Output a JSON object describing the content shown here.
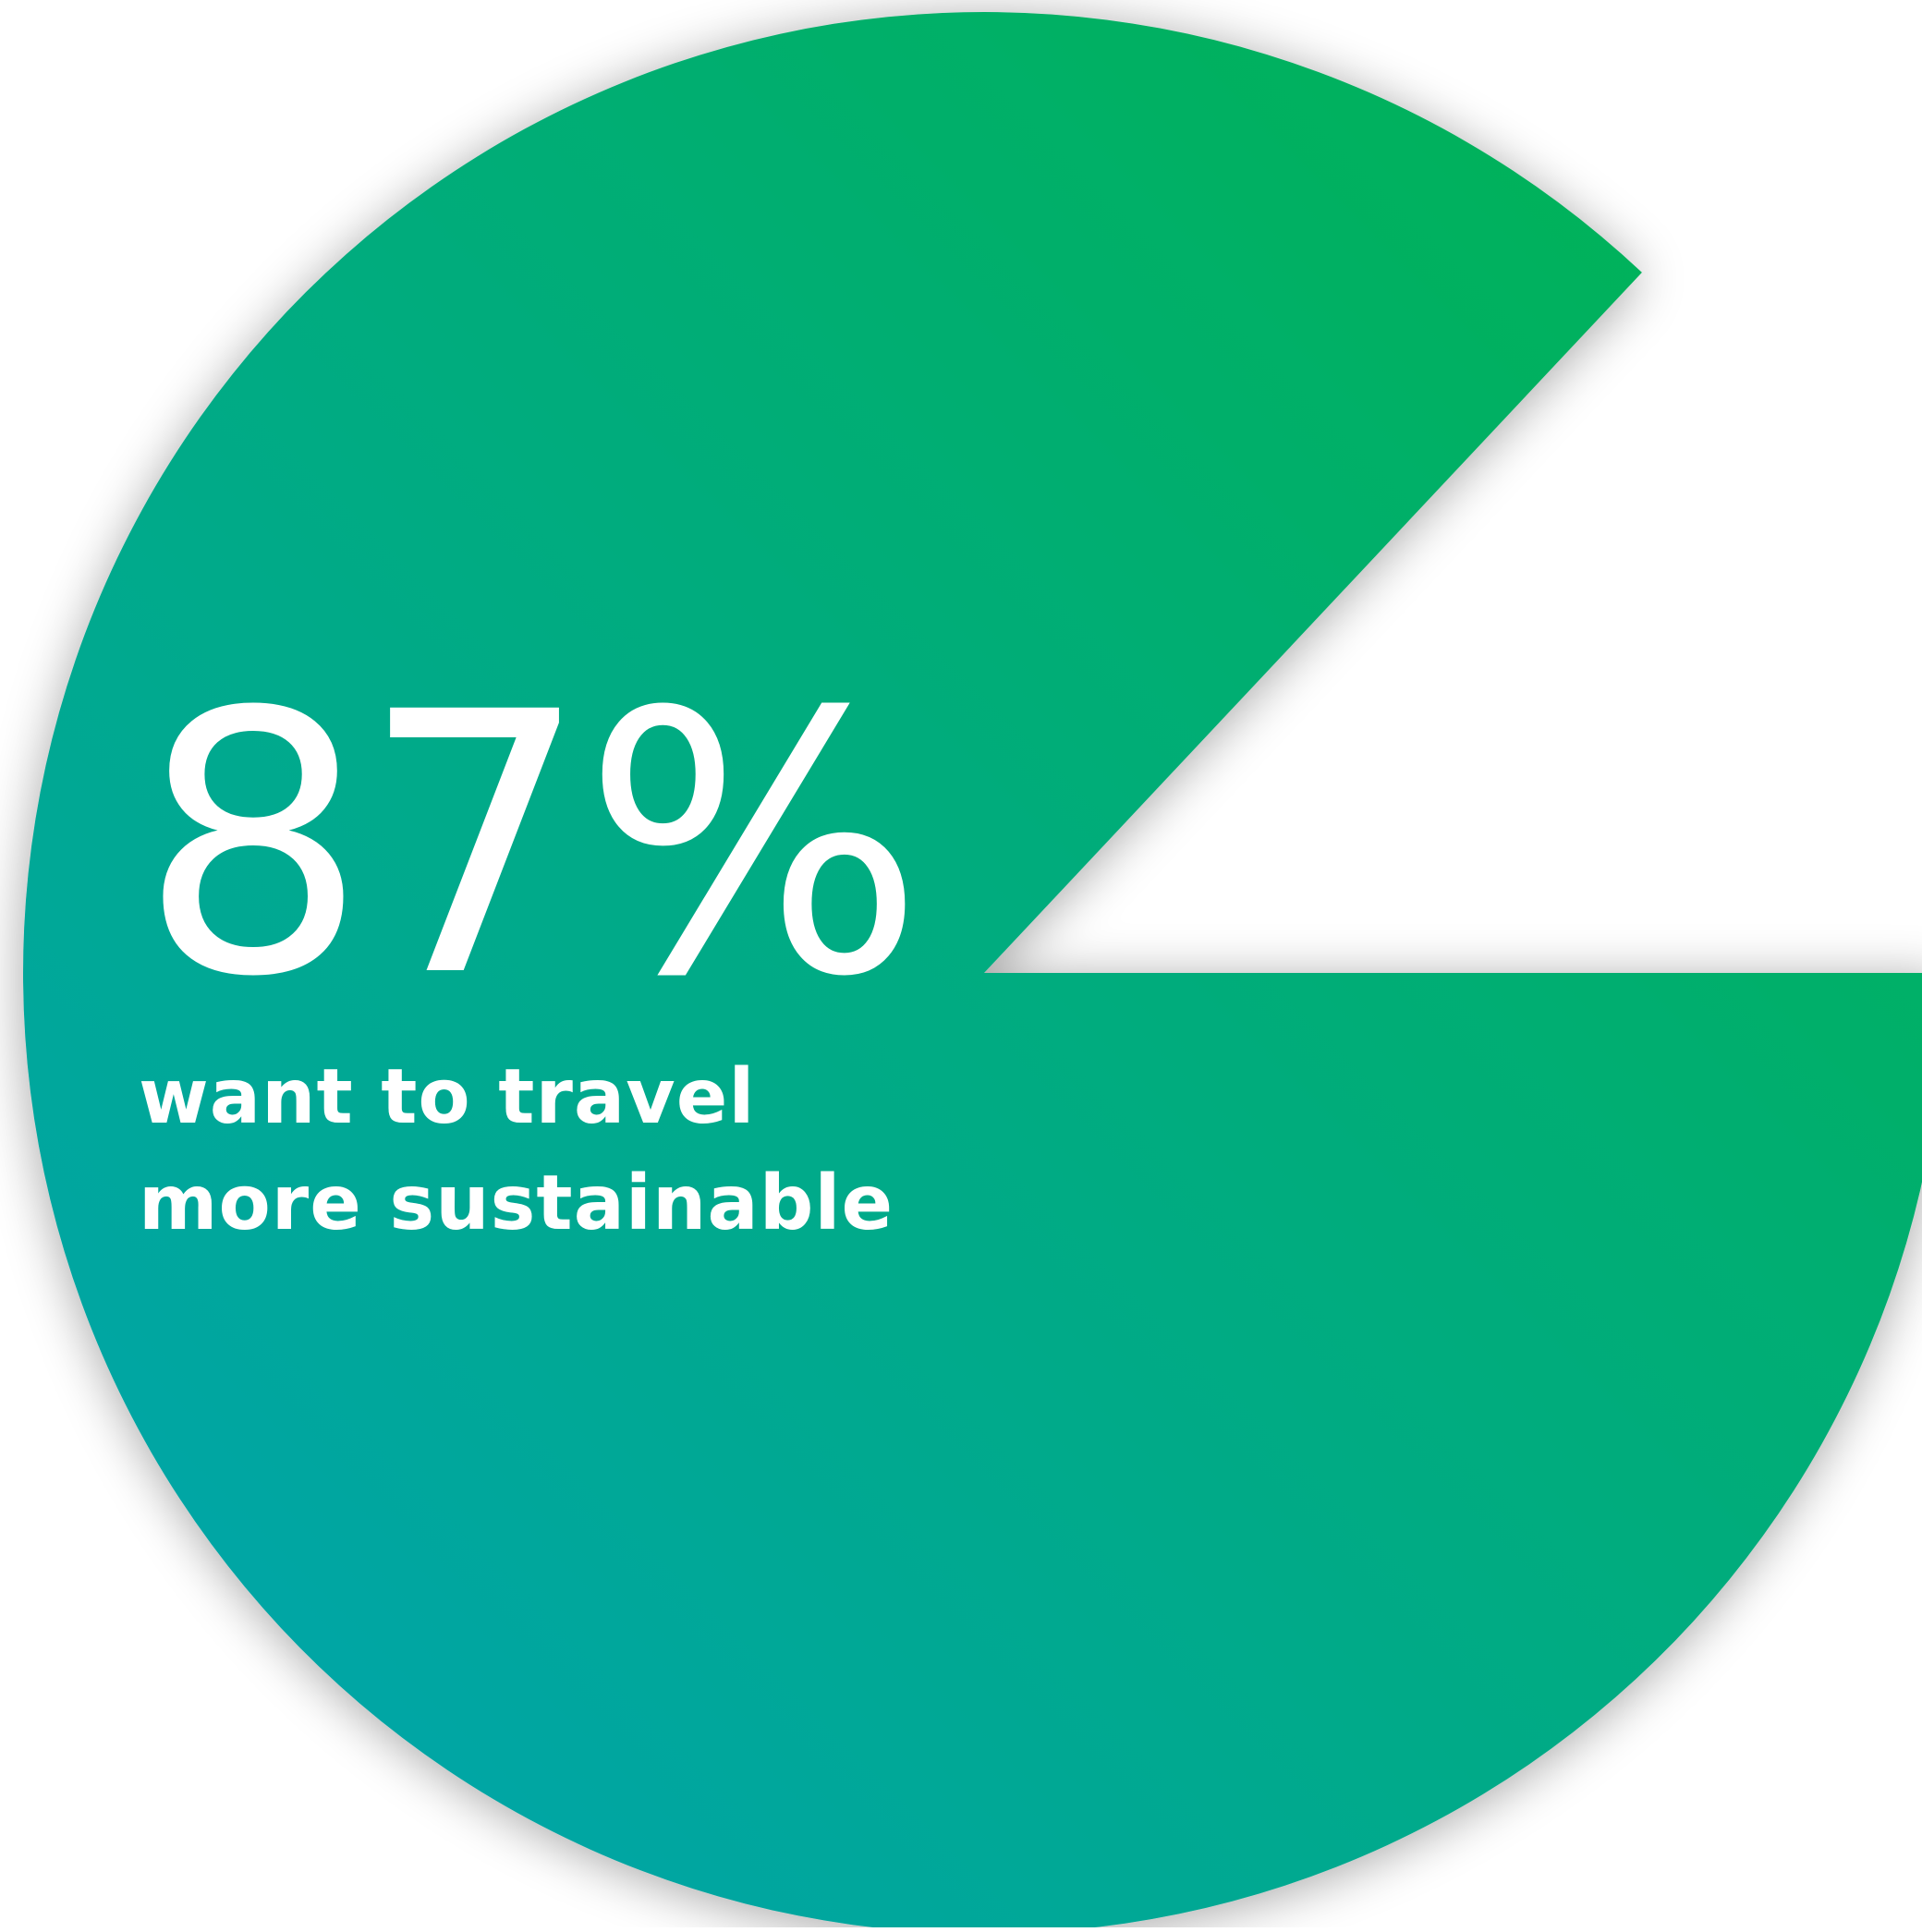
{
  "chart_data": {
    "type": "pie",
    "value_percent": 87,
    "value_label": "87%",
    "caption_lines": [
      "want to travel",
      "more sustainable"
    ],
    "gradient": {
      "start_color": "#00a3b4",
      "end_color": "#00b44c"
    },
    "shadow_color": "#000000"
  }
}
